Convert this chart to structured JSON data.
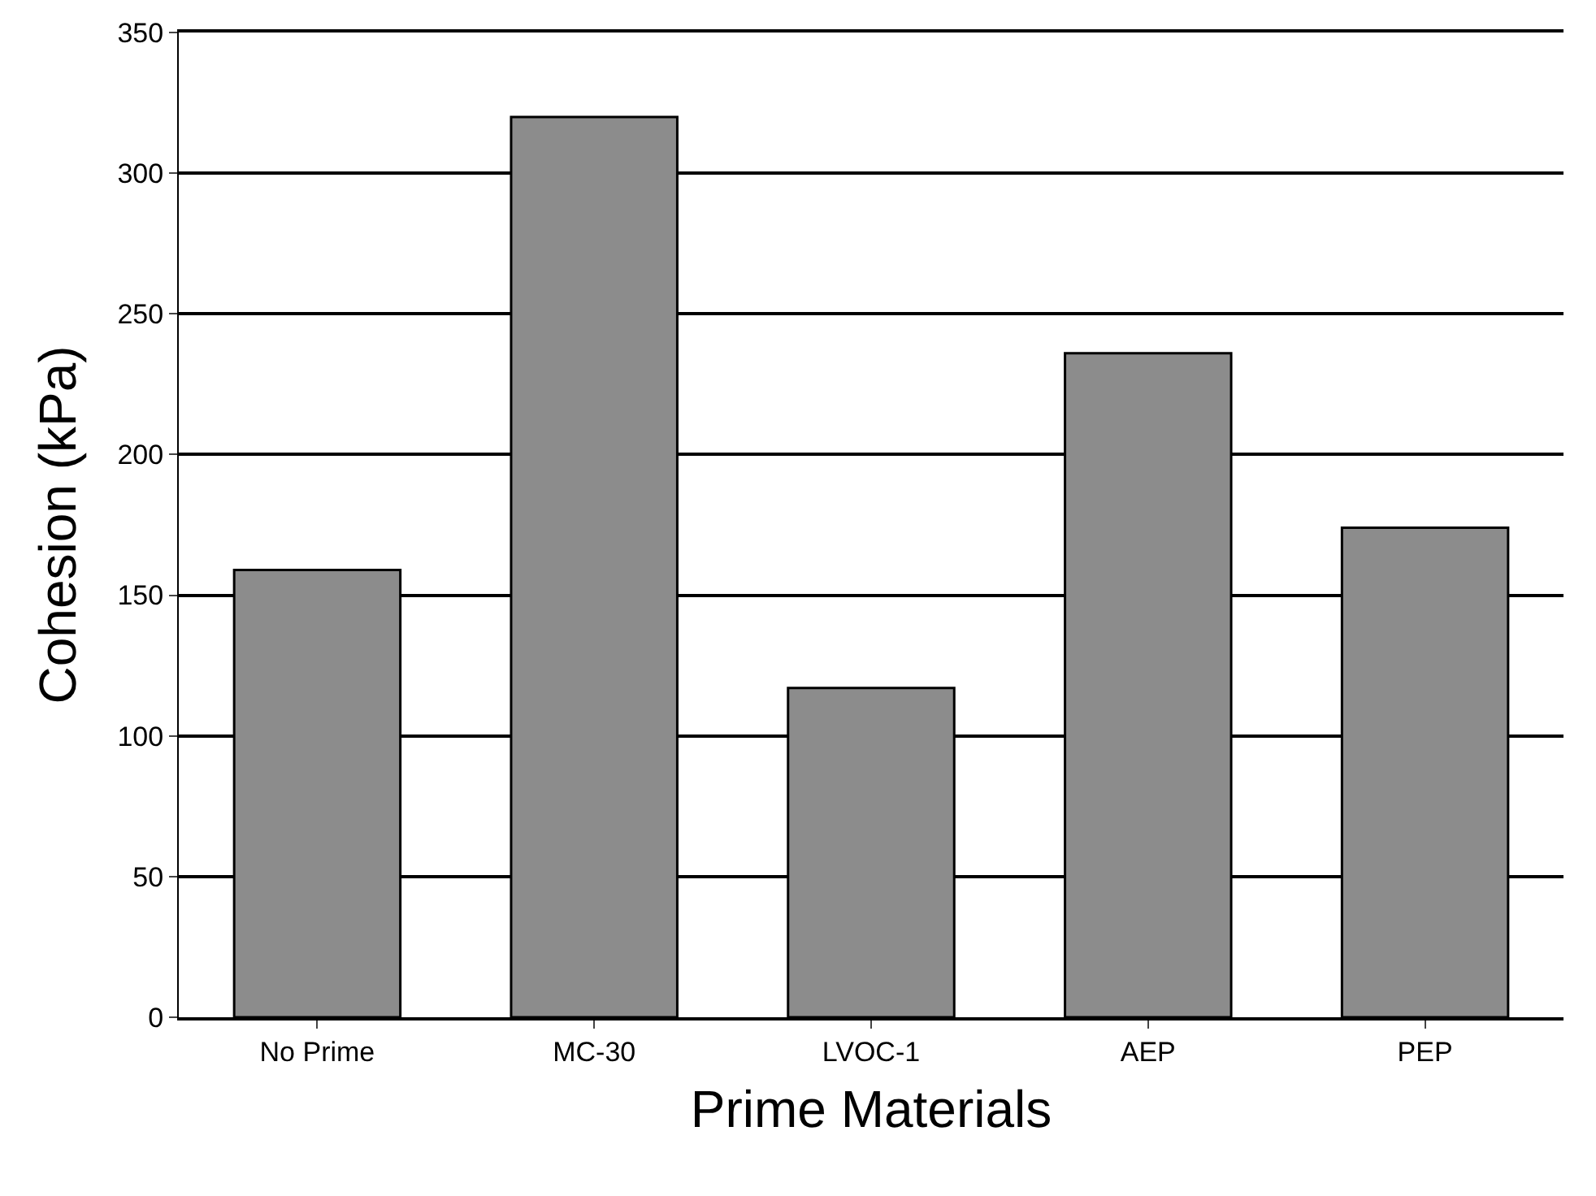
{
  "chart_data": {
    "type": "bar",
    "xlabel": "Prime Materials",
    "ylabel": "Cohesion (kPa)",
    "categories": [
      "No Prime",
      "MC-30",
      "LVOC-1",
      "AEP",
      "PEP"
    ],
    "values": [
      159,
      320,
      117,
      236,
      174
    ],
    "color": "#8c8c8c",
    "ylim": [
      0,
      350
    ],
    "yticks": [
      0,
      50,
      100,
      150,
      200,
      250,
      300,
      350
    ],
    "grid": "y"
  }
}
